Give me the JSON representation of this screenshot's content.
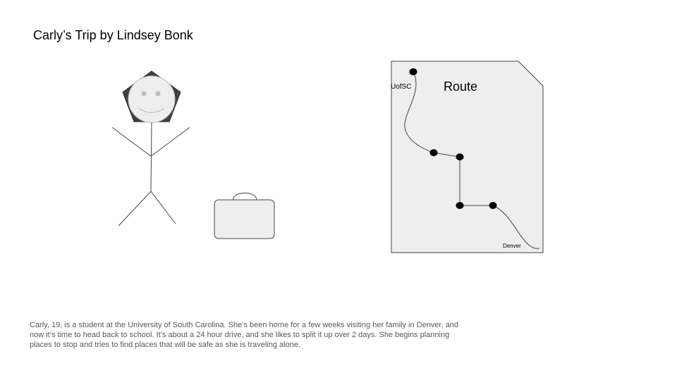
{
  "slide": {
    "title": "Carly’s Trip by Lindsey Bonk",
    "description": "Carly, 19, is a student at the University of South Carolina. She’s been home for a few weeks visiting her family in Denver, and now it’s time to head back to school. It’s about a 24 hour drive, and she likes to split it up over 2 days. She begins planning places to stop and tries to find places that will be safe as she is traveling alone."
  },
  "map": {
    "title": "Route",
    "start_label": "UofSC",
    "end_label": "Denver"
  },
  "colors": {
    "head_fill": "#404040",
    "face_fill": "#eeeeee",
    "paper_fill": "#eeeeee",
    "route_stop": "#000000",
    "description_text": "#595959"
  }
}
